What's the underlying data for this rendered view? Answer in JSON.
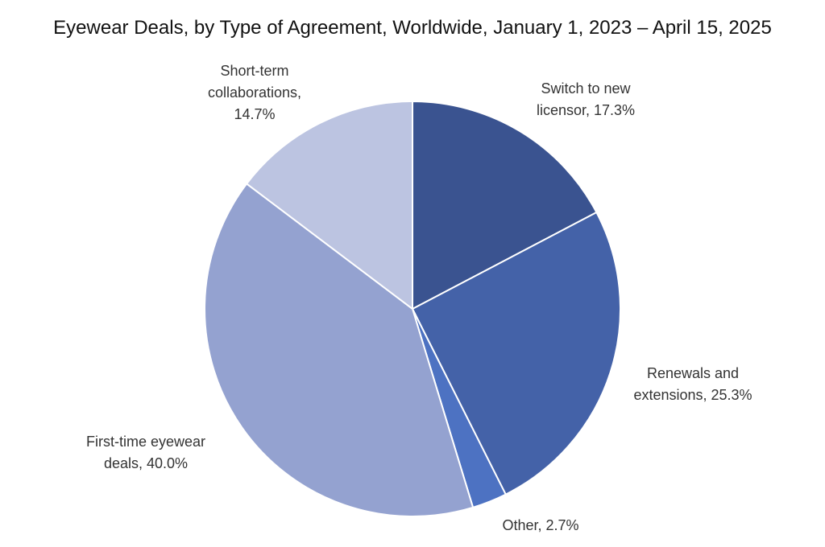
{
  "chart_data": {
    "type": "pie",
    "title": "Eyewear Deals, by Type of Agreement, Worldwide, January 1, 2023 – April 15, 2025",
    "start": "top",
    "direction": "clockwise",
    "unit": "%",
    "slices": [
      {
        "label_lines": [
          "Switch to new",
          "licensor, 17.3%"
        ],
        "value": 17.3,
        "color": "#3a5390"
      },
      {
        "label_lines": [
          "Renewals and",
          "extensions, 25.3%"
        ],
        "value": 25.3,
        "color": "#4462a8"
      },
      {
        "label_lines": [
          "Other, 2.7%"
        ],
        "value": 2.7,
        "color": "#4d72c2"
      },
      {
        "label_lines": [
          "First-time eyewear",
          "deals, 40.0%"
        ],
        "value": 40.0,
        "color": "#94a2d0"
      },
      {
        "label_lines": [
          "Short-term",
          "collaborations,",
          "14.7%"
        ],
        "value": 14.7,
        "color": "#bcc4e1"
      }
    ]
  }
}
